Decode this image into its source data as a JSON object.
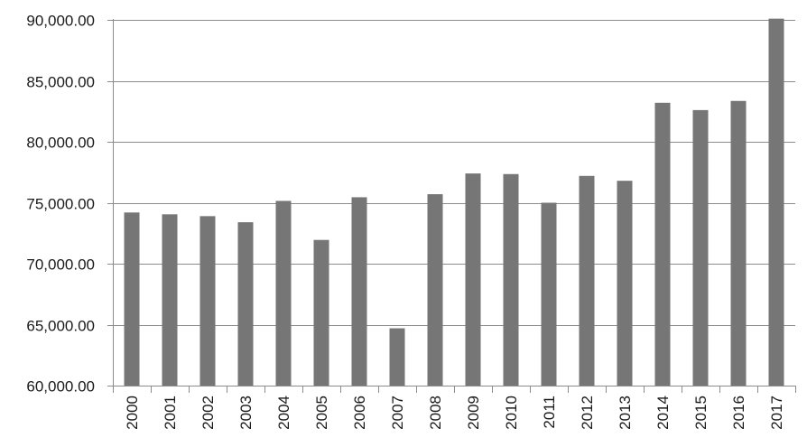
{
  "chart_data": {
    "type": "bar",
    "title": "",
    "xlabel": "",
    "ylabel": "",
    "categories": [
      "2000",
      "2001",
      "2002",
      "2003",
      "2004",
      "2005",
      "2006",
      "2007",
      "2008",
      "2009",
      "2010",
      "2011",
      "2012",
      "2013",
      "2014",
      "2015",
      "2016",
      "2017"
    ],
    "values": [
      74200,
      74050,
      73900,
      73400,
      75150,
      71950,
      75450,
      64700,
      75700,
      77400,
      77350,
      75000,
      77200,
      76800,
      83200,
      82600,
      83350,
      90100
    ],
    "ylim": [
      60000,
      90000
    ],
    "yticks": [
      60000,
      65000,
      70000,
      75000,
      80000,
      85000,
      90000
    ],
    "ytick_labels": [
      "60,000.00",
      "65,000.00",
      "70,000.00",
      "75,000.00",
      "80,000.00",
      "85,000.00",
      "90,000.00"
    ],
    "grid": true,
    "legend": "none",
    "colors": {
      "bar": "#767676",
      "grid": "#8c8c8c",
      "text": "#1a1a1a"
    }
  }
}
